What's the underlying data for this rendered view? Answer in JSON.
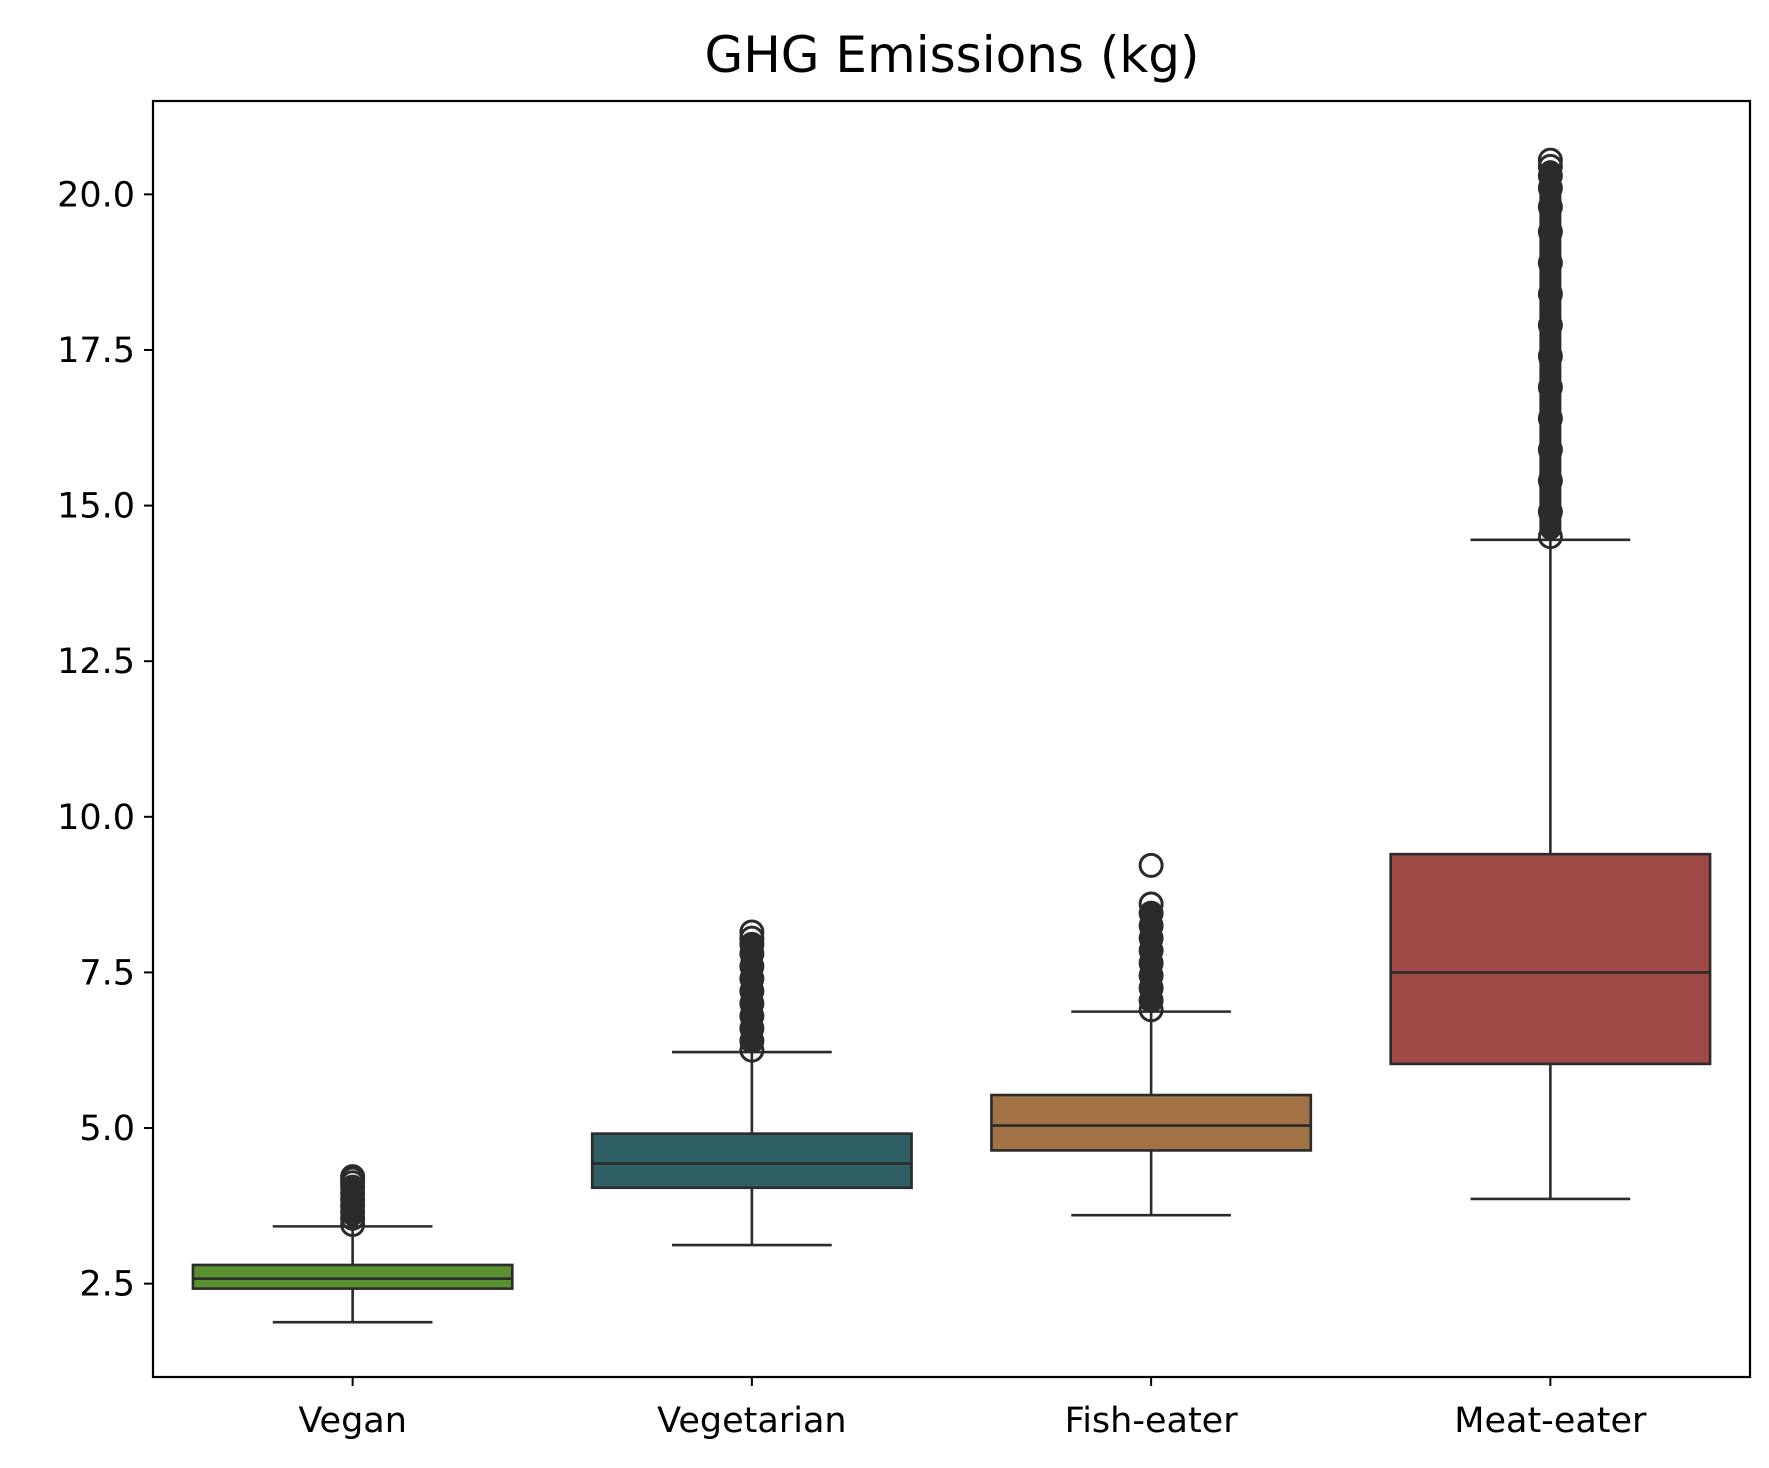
{
  "chart_data": {
    "type": "box",
    "title": "GHG Emissions (kg)",
    "xlabel": "",
    "ylabel": "",
    "ylim": [
      1.0,
      21.5
    ],
    "yticks": [
      2.5,
      5.0,
      7.5,
      10.0,
      12.5,
      15.0,
      17.5,
      20.0
    ],
    "ytick_labels": [
      "2.5",
      "5.0",
      "7.5",
      "10.0",
      "12.5",
      "15.0",
      "17.5",
      "20.0"
    ],
    "categories": [
      "Vegan",
      "Vegetarian",
      "Fish-eater",
      "Meat-eater"
    ],
    "boxes": [
      {
        "category": "Vegan",
        "color": "#5a9030",
        "whisker_low": 1.88,
        "q1": 2.42,
        "median": 2.58,
        "q3": 2.8,
        "whisker_high": 3.42,
        "outliers_range": [
          3.42,
          4.22
        ],
        "outliers_sample": [
          3.45,
          3.55,
          3.65,
          3.75,
          3.85,
          3.95,
          4.05,
          4.12,
          4.18,
          4.22
        ]
      },
      {
        "category": "Vegetarian",
        "color": "#2e5f62",
        "whisker_low": 3.12,
        "q1": 4.04,
        "median": 4.43,
        "q3": 4.91,
        "whisker_high": 6.22,
        "outliers_range": [
          6.22,
          8.15
        ],
        "outliers_sample": [
          6.25,
          6.4,
          6.6,
          6.8,
          7.0,
          7.2,
          7.4,
          7.6,
          7.8,
          7.95,
          8.05,
          8.15
        ]
      },
      {
        "category": "Fish-eater",
        "color": "#a07245",
        "whisker_low": 3.6,
        "q1": 4.64,
        "median": 5.04,
        "q3": 5.53,
        "whisker_high": 6.87,
        "outliers_range": [
          6.87,
          9.22
        ],
        "outliers_sample": [
          6.9,
          7.05,
          7.25,
          7.45,
          7.65,
          7.85,
          8.05,
          8.25,
          8.45,
          8.6,
          9.22
        ]
      },
      {
        "category": "Meat-eater",
        "color": "#a04a48",
        "whisker_low": 3.86,
        "q1": 6.03,
        "median": 7.5,
        "q3": 9.4,
        "whisker_high": 14.45,
        "outliers_range": [
          14.45,
          20.55
        ],
        "outliers_sample": [
          14.5,
          14.9,
          15.4,
          15.9,
          16.4,
          16.9,
          17.4,
          17.9,
          18.4,
          18.9,
          19.4,
          19.8,
          20.1,
          20.3,
          20.45,
          20.55
        ]
      }
    ],
    "edge_color": "#2b2b2b",
    "grid": false,
    "legend": "none"
  }
}
